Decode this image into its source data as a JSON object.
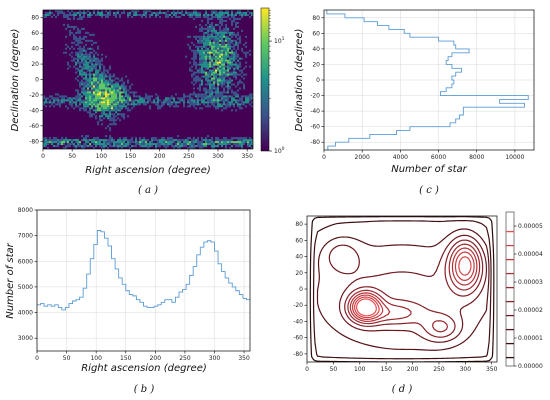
{
  "chart_data": [
    {
      "panel": "a",
      "type": "heatmap",
      "panel_label": "( a )",
      "xlabel": "Right ascension (degree)",
      "ylabel": "Declination (degree)",
      "xlim": [
        0,
        360
      ],
      "ylim": [
        -90,
        90
      ],
      "xticks": [
        0,
        50,
        100,
        150,
        200,
        250,
        300,
        350
      ],
      "yticks": [
        -80,
        -60,
        -40,
        -20,
        0,
        20,
        40,
        60,
        80
      ],
      "colorscale": "log",
      "colormap": [
        "#440154",
        "#3b528b",
        "#21918c",
        "#5ec962",
        "#fde725"
      ],
      "colorbar_ticks": [
        {
          "base": "10",
          "exp": "0"
        },
        {
          "base": "10",
          "exp": "1"
        }
      ],
      "colorbar_range": [
        1,
        20
      ]
    },
    {
      "panel": "b",
      "type": "line",
      "panel_label": "( b )",
      "xlabel": "Right ascension (degree)",
      "ylabel": "Number of star",
      "xlim": [
        0,
        360
      ],
      "ylim": [
        2500,
        8000
      ],
      "xticks": [
        0,
        50,
        100,
        150,
        200,
        250,
        300,
        350
      ],
      "yticks": [
        3000,
        4000,
        5000,
        6000,
        7000,
        8000
      ],
      "grid": true,
      "color": "#5b9bd5",
      "bin_width": 6,
      "x": [
        0,
        6,
        12,
        18,
        24,
        30,
        36,
        42,
        48,
        54,
        60,
        66,
        72,
        78,
        84,
        90,
        96,
        102,
        108,
        114,
        120,
        126,
        132,
        138,
        144,
        150,
        156,
        162,
        168,
        174,
        180,
        186,
        192,
        198,
        204,
        210,
        216,
        222,
        228,
        234,
        240,
        246,
        252,
        258,
        264,
        270,
        276,
        282,
        288,
        294,
        300,
        306,
        312,
        318,
        324,
        330,
        336,
        342,
        348,
        354
      ],
      "values": [
        4300,
        4350,
        4250,
        4300,
        4250,
        4300,
        4200,
        4100,
        4200,
        4350,
        4450,
        4500,
        4600,
        4950,
        5500,
        6100,
        6650,
        7200,
        7150,
        6900,
        6600,
        6100,
        5700,
        5350,
        5100,
        4850,
        4700,
        4650,
        4500,
        4400,
        4250,
        4200,
        4200,
        4250,
        4300,
        4400,
        4500,
        4500,
        4400,
        4600,
        4800,
        4900,
        5100,
        5450,
        5800,
        6250,
        6550,
        6750,
        6800,
        6750,
        6400,
        5900,
        5600,
        5350,
        5150,
        5000,
        4850,
        4700,
        4550,
        4500
      ]
    },
    {
      "panel": "c",
      "type": "line",
      "panel_label": "( c )",
      "xlabel": "Number of star",
      "ylabel": "Declination (degree)",
      "xlim": [
        0,
        11000
      ],
      "ylim": [
        -90,
        90
      ],
      "xticks": [
        0,
        2000,
        4000,
        6000,
        8000,
        10000
      ],
      "yticks": [
        -80,
        -60,
        -40,
        -20,
        0,
        20,
        40,
        60,
        80
      ],
      "grid": true,
      "color": "#5b9bd5",
      "bin_width": 5,
      "y": [
        -90,
        -85,
        -80,
        -75,
        -70,
        -65,
        -60,
        -55,
        -50,
        -45,
        -40,
        -35,
        -30,
        -25,
        -20,
        -15,
        -10,
        -5,
        0,
        5,
        10,
        15,
        20,
        25,
        30,
        35,
        40,
        45,
        50,
        55,
        60,
        65,
        70,
        75,
        80,
        85
      ],
      "values": [
        200,
        600,
        1300,
        2400,
        3800,
        4500,
        6600,
        6900,
        7100,
        7300,
        7300,
        10500,
        9200,
        10700,
        6100,
        6400,
        6700,
        6800,
        6700,
        6900,
        7200,
        6700,
        6400,
        6500,
        6700,
        7600,
        6900,
        6800,
        6000,
        4500,
        4200,
        3400,
        2800,
        2100,
        1100,
        150
      ]
    },
    {
      "panel": "d",
      "type": "contour",
      "panel_label": "( d )",
      "xlim": [
        0,
        360
      ],
      "ylim": [
        -90,
        90
      ],
      "xticks": [
        0,
        50,
        100,
        150,
        200,
        250,
        300,
        350
      ],
      "yticks": [
        -80,
        -60,
        -40,
        -20,
        0,
        20,
        40,
        60,
        80
      ],
      "colorbar_ticks": [
        "0.00000",
        "0.00001",
        "0.00002",
        "0.00003",
        "0.00004",
        "0.00005"
      ],
      "colorbar_range": [
        0,
        5.5e-05
      ],
      "levels": [
        3e-06,
        8e-06,
        1.3e-05,
        1.8e-05,
        2.3e-05,
        2.8e-05,
        3.3e-05,
        3.8e-05,
        4.3e-05,
        4.8e-05
      ],
      "level_colors": [
        "#2b0a0a",
        "#3f0f12",
        "#571419",
        "#6e1920",
        "#852027",
        "#9c282f",
        "#b33037",
        "#c63a3f",
        "#d84448",
        "#e84f52"
      ],
      "components": [
        {
          "ra": 180,
          "dec": -10,
          "sra": 150,
          "sdec": 60,
          "w": 1.6e-05
        },
        {
          "ra": 110,
          "dec": -22,
          "sra": 20,
          "sdec": 12,
          "w": 4e-05
        },
        {
          "ra": 300,
          "dec": 30,
          "sra": 22,
          "sdec": 22,
          "w": 3.4e-05
        },
        {
          "ra": 165,
          "dec": -30,
          "sra": 40,
          "sdec": 10,
          "w": 1.2e-05
        },
        {
          "ra": 255,
          "dec": -48,
          "sra": 25,
          "sdec": 12,
          "w": 1.4e-05
        },
        {
          "ra": 65,
          "dec": 42,
          "sra": 25,
          "sdec": 15,
          "w": 1e-05
        }
      ]
    }
  ]
}
